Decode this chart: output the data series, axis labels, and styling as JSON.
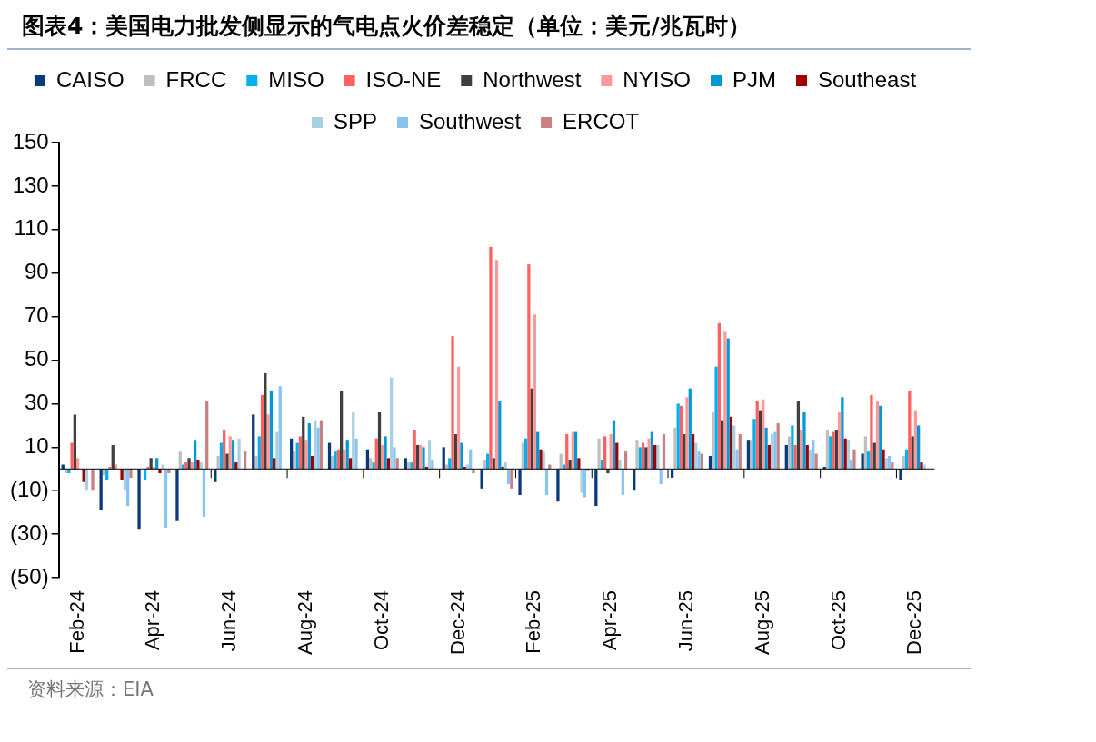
{
  "chart_data": {
    "type": "bar",
    "title": "图表4：美国电力批发侧显示的气电点火价差稳定（单位：美元/兆瓦时）",
    "annotations": [
      "资料来源：EIA"
    ],
    "categories": [
      "Feb-24",
      null,
      "Apr-24",
      null,
      "Jun-24",
      null,
      "Aug-24",
      null,
      "Oct-24",
      null,
      "Dec-24",
      null,
      "Feb-25",
      null,
      "Apr-25",
      null,
      "Jun-25",
      null,
      "Aug-25",
      null,
      "Oct-25",
      null,
      "Dec-25"
    ],
    "series": [
      {
        "name": "CAISO",
        "color": "#0a3a7a",
        "values": [
          2,
          -19,
          -28,
          -24,
          -6,
          25,
          14,
          12,
          9,
          5,
          10,
          -9,
          -12,
          -15,
          -17,
          -10,
          -4,
          6,
          13,
          11,
          1,
          7,
          -5
        ]
      },
      {
        "name": "FRCC",
        "color": "#bfbfbf",
        "values": [
          -2,
          -3,
          0,
          8,
          6,
          6,
          8,
          6,
          5,
          3,
          2,
          4,
          12,
          7,
          14,
          13,
          19,
          26,
          13,
          15,
          18,
          15,
          6
        ]
      },
      {
        "name": "MISO",
        "color": "#00b0f0",
        "values": [
          -2,
          -5,
          -5,
          2,
          12,
          15,
          12,
          8,
          3,
          3,
          5,
          7,
          14,
          2,
          4,
          10,
          30,
          47,
          23,
          20,
          15,
          8,
          9
        ]
      },
      {
        "name": "ISO-NE",
        "color": "#ff6161",
        "values": [
          12,
          1,
          1,
          3,
          18,
          34,
          15,
          9,
          14,
          18,
          61,
          102,
          94,
          16,
          15,
          12,
          29,
          67,
          31,
          11,
          17,
          34,
          36
        ]
      },
      {
        "name": "Northwest",
        "color": "#404040",
        "values": [
          25,
          11,
          5,
          5,
          7,
          44,
          24,
          36,
          26,
          11,
          16,
          5,
          37,
          4,
          -2,
          10,
          16,
          22,
          27,
          31,
          18,
          12,
          15
        ]
      },
      {
        "name": "NYISO",
        "color": "#ff9999",
        "values": [
          5,
          2,
          1,
          3,
          15,
          25,
          13,
          9,
          11,
          11,
          47,
          96,
          71,
          17,
          16,
          14,
          33,
          63,
          32,
          18,
          26,
          31,
          27
        ]
      },
      {
        "name": "PJM",
        "color": "#0099d6",
        "values": [
          0,
          0,
          5,
          13,
          13,
          36,
          21,
          13,
          15,
          10,
          12,
          31,
          17,
          17,
          22,
          17,
          37,
          60,
          19,
          26,
          33,
          29,
          20
        ]
      },
      {
        "name": "Southeast",
        "color": "#a00000",
        "values": [
          -6,
          -5,
          -2,
          4,
          3,
          5,
          6,
          5,
          5,
          1,
          1,
          1,
          9,
          5,
          12,
          11,
          16,
          24,
          11,
          11,
          14,
          9,
          3
        ]
      },
      {
        "name": "SPP",
        "color": "#a8d0e0",
        "values": [
          -10,
          -10,
          2,
          3,
          14,
          17,
          22,
          26,
          42,
          13,
          2,
          3,
          8,
          -11,
          4,
          11,
          12,
          20,
          16,
          9,
          13,
          5,
          2
        ]
      },
      {
        "name": "Southwest",
        "color": "#87c5f0",
        "values": [
          0,
          -17,
          -27,
          -22,
          0,
          38,
          19,
          14,
          10,
          4,
          9,
          -7,
          -12,
          -13,
          -12,
          -7,
          8,
          9,
          17,
          13,
          4,
          6,
          0
        ]
      },
      {
        "name": "ERCOT",
        "color": "#c98080",
        "values": [
          -10,
          -4,
          -2,
          31,
          8,
          0,
          22,
          0,
          5,
          0,
          -2,
          -9,
          2,
          -1,
          8,
          16,
          7,
          16,
          21,
          7,
          9,
          3,
          0
        ]
      }
    ],
    "ylim": [
      -50,
      150
    ],
    "yticks": [
      {
        "value": -50,
        "label": "(50)"
      },
      {
        "value": -30,
        "label": "(30)"
      },
      {
        "value": -10,
        "label": "(10)"
      },
      10,
      30,
      50,
      70,
      90,
      110,
      130,
      150
    ],
    "grid": false,
    "legend": "top"
  }
}
